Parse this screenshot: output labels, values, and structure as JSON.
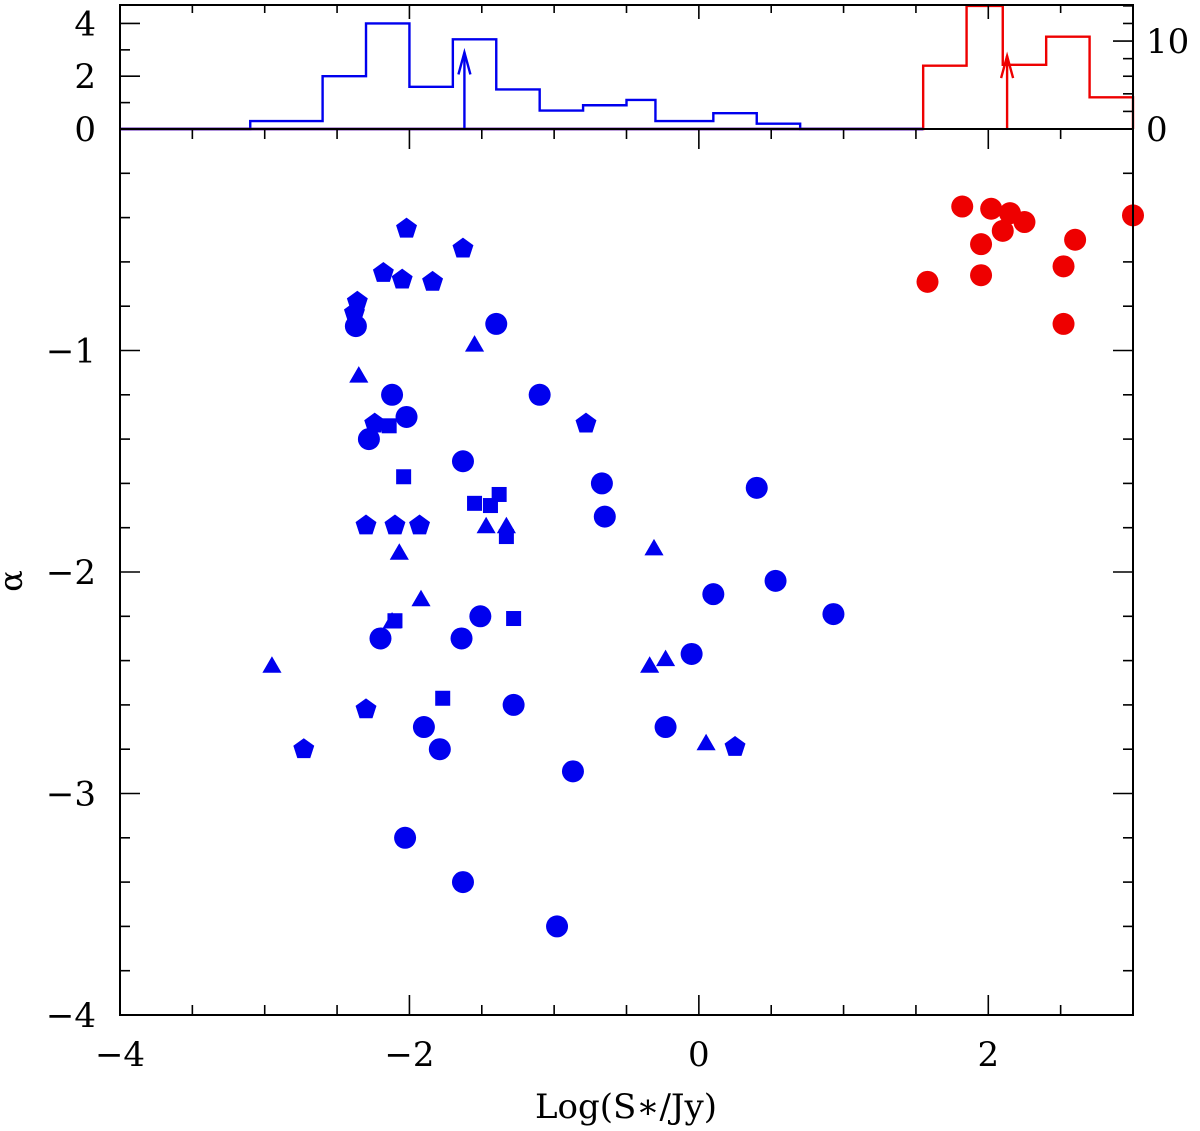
{
  "chart_data": [
    {
      "panel": "main",
      "type": "scatter",
      "xlabel": "Log(S∗/Jy)",
      "ylabel": "α",
      "xlim": [
        -4,
        3
      ],
      "ylim": [
        -4,
        0
      ],
      "x_ticks": [
        -4,
        -2,
        0,
        2
      ],
      "y_ticks": [
        -4,
        -3,
        -2,
        -1
      ],
      "x_tick_labels": [
        "−4",
        "−2",
        "0",
        "2"
      ],
      "y_tick_labels": [
        "−4",
        "−3",
        "−2",
        "−1"
      ],
      "series": [
        {
          "name": "circles-blue",
          "marker": "circle",
          "color": "#0000ee",
          "points": [
            [
              -2.37,
              -0.89
            ],
            [
              -2.12,
              -1.2
            ],
            [
              -2.28,
              -1.4
            ],
            [
              -2.02,
              -1.3
            ],
            [
              -1.4,
              -0.88
            ],
            [
              -1.1,
              -1.2
            ],
            [
              -1.63,
              -1.5
            ],
            [
              -0.67,
              -1.6
            ],
            [
              -0.65,
              -1.75
            ],
            [
              0.4,
              -1.62
            ],
            [
              -2.2,
              -2.3
            ],
            [
              -1.64,
              -2.3
            ],
            [
              -1.51,
              -2.2
            ],
            [
              0.1,
              -2.1
            ],
            [
              0.53,
              -2.04
            ],
            [
              0.93,
              -2.19
            ],
            [
              -0.05,
              -2.37
            ],
            [
              -1.28,
              -2.6
            ],
            [
              -0.23,
              -2.7
            ],
            [
              -1.9,
              -2.7
            ],
            [
              -1.79,
              -2.8
            ],
            [
              -0.87,
              -2.9
            ],
            [
              -2.03,
              -3.2
            ],
            [
              -1.63,
              -3.4
            ],
            [
              -0.98,
              -3.6
            ]
          ]
        },
        {
          "name": "triangles-blue",
          "marker": "triangle",
          "color": "#0000ee",
          "points": [
            [
              -2.95,
              -2.43
            ],
            [
              -2.35,
              -1.12
            ],
            [
              -2.07,
              -1.92
            ],
            [
              -1.92,
              -2.13
            ],
            [
              -2.12,
              -2.23
            ],
            [
              -1.55,
              -0.98
            ],
            [
              -1.47,
              -1.8
            ],
            [
              -1.33,
              -1.8
            ],
            [
              -0.31,
              -1.9
            ],
            [
              -0.34,
              -2.43
            ],
            [
              -0.23,
              -2.4
            ],
            [
              0.05,
              -2.78
            ]
          ]
        },
        {
          "name": "squares-blue",
          "marker": "square",
          "color": "#0000ee",
          "points": [
            [
              -2.14,
              -1.34
            ],
            [
              -2.04,
              -1.57
            ],
            [
              -1.55,
              -1.69
            ],
            [
              -1.44,
              -1.7
            ],
            [
              -1.38,
              -1.65
            ],
            [
              -1.33,
              -1.84
            ],
            [
              -2.1,
              -2.22
            ],
            [
              -1.77,
              -2.57
            ],
            [
              -1.28,
              -2.21
            ]
          ]
        },
        {
          "name": "pentagons-blue",
          "marker": "pentagon",
          "color": "#0000ee",
          "points": [
            [
              -2.02,
              -0.45
            ],
            [
              -1.63,
              -0.54
            ],
            [
              -2.18,
              -0.65
            ],
            [
              -2.05,
              -0.68
            ],
            [
              -1.84,
              -0.69
            ],
            [
              -2.36,
              -0.78
            ],
            [
              -2.38,
              -0.83
            ],
            [
              -2.24,
              -1.33
            ],
            [
              -2.3,
              -1.79
            ],
            [
              -2.1,
              -1.79
            ],
            [
              -1.93,
              -1.79
            ],
            [
              -0.78,
              -1.33
            ],
            [
              -2.3,
              -2.62
            ],
            [
              -2.73,
              -2.8
            ],
            [
              0.25,
              -2.79
            ]
          ]
        },
        {
          "name": "circles-red",
          "marker": "circle",
          "color": "#ee0000",
          "points": [
            [
              1.82,
              -0.35
            ],
            [
              2.02,
              -0.36
            ],
            [
              2.15,
              -0.38
            ],
            [
              2.25,
              -0.42
            ],
            [
              2.1,
              -0.46
            ],
            [
              1.95,
              -0.52
            ],
            [
              2.6,
              -0.5
            ],
            [
              3.0,
              -0.39
            ],
            [
              2.52,
              -0.62
            ],
            [
              1.95,
              -0.66
            ],
            [
              1.58,
              -0.69
            ],
            [
              2.52,
              -0.88
            ]
          ]
        }
      ]
    },
    {
      "panel": "histogram",
      "type": "bar",
      "xlim": [
        -4,
        3
      ],
      "left_axis": {
        "ylim": [
          0,
          4.7
        ],
        "ticks": [
          0,
          2,
          4
        ],
        "tick_labels": [
          "0",
          "2",
          "4"
        ]
      },
      "right_axis": {
        "ylim": [
          0,
          14.1
        ],
        "ticks": [
          0,
          10
        ],
        "tick_labels": [
          "0",
          "10"
        ]
      },
      "series": [
        {
          "name": "blue-histogram",
          "color": "#0000ee",
          "axis": "left",
          "bin_edges": [
            -3.1,
            -2.6,
            -2.3,
            -2.0,
            -1.7,
            -1.4,
            -1.1,
            -0.8,
            -0.5,
            -0.3,
            0.1,
            0.4,
            0.7,
            1.0
          ],
          "counts": [
            0.3,
            2.0,
            4.0,
            1.6,
            3.4,
            1.5,
            0.7,
            0.9,
            1.1,
            0.3,
            0.6,
            0.2,
            0
          ]
        },
        {
          "name": "red-histogram",
          "color": "#ee0000",
          "axis": "right",
          "bin_edges": [
            1.55,
            1.85,
            2.1,
            2.4,
            2.7,
            3.0
          ],
          "counts": [
            7.2,
            14.0,
            7.3,
            10.5,
            3.6
          ]
        }
      ],
      "markers": [
        {
          "name": "blue-median-arrow",
          "x": -1.62,
          "color": "#0000ee",
          "top": 2.9
        },
        {
          "name": "red-median-arrow",
          "x": 2.13,
          "color": "#ee0000",
          "top": 8.3
        }
      ]
    }
  ]
}
